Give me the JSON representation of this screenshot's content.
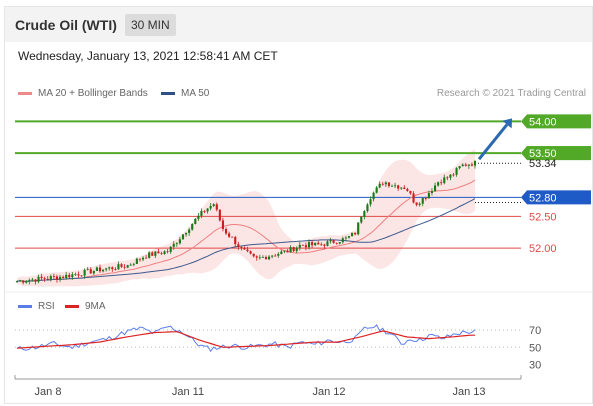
{
  "header": {
    "title": "Crude Oil (WTI)",
    "timeframe": "30 MIN"
  },
  "datetime": "Wednesday, January 13, 2021 12:58:41 AM CET",
  "legend": {
    "ma_bands": "MA 20 + Bollinger Bands",
    "ma50": "MA 50",
    "credit": "Research © 2021 Trading Central",
    "rsi": "RSI",
    "rsi_ma": "9MA"
  },
  "colors": {
    "resistance": "#52a827",
    "pivot": "#1f5bc6",
    "support": "#e04848",
    "ma20": "#f07f7f",
    "band_fill": "#fbdcdc",
    "ma50": "#3c5a8c",
    "rsi": "#5b7de8",
    "rsi_ma": "#dd2222",
    "candle_up": "#1a7a1a",
    "candle_down": "#cc1e1e",
    "arrow": "#2a68b0"
  },
  "chart_data": [
    {
      "type": "candlestick",
      "title": "Crude Oil (WTI)",
      "timeframe": "30 MIN",
      "x_ticks": [
        "Jan 8",
        "Jan 11",
        "Jan 12",
        "Jan 13"
      ],
      "ylim": [
        51.48,
        54.18
      ],
      "levels": [
        {
          "value": 54.0,
          "label": "54.00",
          "kind": "resistance"
        },
        {
          "value": 53.5,
          "label": "53.50",
          "kind": "resistance"
        },
        {
          "value": 53.34,
          "label": "53.34",
          "kind": "last"
        },
        {
          "value": 52.8,
          "label": "52.80",
          "kind": "pivot"
        },
        {
          "value": 52.5,
          "label": "52.50",
          "kind": "support"
        },
        {
          "value": 52.0,
          "label": "52.00",
          "kind": "support"
        }
      ],
      "price_path": [
        [
          0,
          51.48
        ],
        [
          10,
          51.55
        ],
        [
          18,
          51.66
        ],
        [
          24,
          51.72
        ],
        [
          28,
          51.88
        ],
        [
          33,
          51.95
        ],
        [
          36,
          52.2
        ],
        [
          39,
          52.45
        ],
        [
          41,
          52.6
        ],
        [
          43,
          52.7
        ],
        [
          45,
          52.3
        ],
        [
          47,
          52.15
        ],
        [
          49,
          51.98
        ],
        [
          52,
          51.82
        ],
        [
          55,
          51.88
        ],
        [
          59,
          51.95
        ],
        [
          62,
          52.05
        ],
        [
          66,
          52.05
        ],
        [
          69,
          52.1
        ],
        [
          72,
          52.15
        ],
        [
          74,
          52.25
        ],
        [
          75,
          52.5
        ],
        [
          77,
          52.8
        ],
        [
          80,
          53.05
        ],
        [
          82,
          53.0
        ],
        [
          85,
          52.95
        ],
        [
          87,
          52.7
        ],
        [
          89,
          52.8
        ],
        [
          92,
          53.05
        ],
        [
          95,
          53.15
        ],
        [
          97,
          53.3
        ],
        [
          99,
          53.34
        ]
      ]
    },
    {
      "type": "line",
      "title": "RSI",
      "ylim": [
        25,
        78
      ],
      "y_ticks": [
        70,
        50,
        30
      ],
      "series": [
        {
          "name": "RSI",
          "points": [
            [
              0,
              48
            ],
            [
              4,
              50
            ],
            [
              8,
              54
            ],
            [
              12,
              50
            ],
            [
              16,
              56
            ],
            [
              20,
              60
            ],
            [
              24,
              68
            ],
            [
              27,
              72
            ],
            [
              30,
              66
            ],
            [
              33,
              74
            ],
            [
              36,
              68
            ],
            [
              38,
              60
            ],
            [
              40,
              52
            ],
            [
              42,
              48
            ],
            [
              44,
              50
            ],
            [
              47,
              52
            ],
            [
              50,
              50
            ],
            [
              53,
              52
            ],
            [
              56,
              54
            ],
            [
              59,
              50
            ],
            [
              62,
              56
            ],
            [
              65,
              53
            ],
            [
              68,
              58
            ],
            [
              71,
              56
            ],
            [
              74,
              60
            ],
            [
              76,
              72
            ],
            [
              78,
              74
            ],
            [
              80,
              70
            ],
            [
              82,
              64
            ],
            [
              84,
              54
            ],
            [
              86,
              60
            ],
            [
              88,
              58
            ],
            [
              90,
              64
            ],
            [
              93,
              60
            ],
            [
              96,
              66
            ],
            [
              99,
              68
            ]
          ]
        },
        {
          "name": "9MA",
          "points": [
            [
              0,
              49
            ],
            [
              6,
              51
            ],
            [
              12,
              53
            ],
            [
              18,
              56
            ],
            [
              24,
              62
            ],
            [
              30,
              67
            ],
            [
              35,
              68
            ],
            [
              40,
              58
            ],
            [
              45,
              50
            ],
            [
              50,
              51
            ],
            [
              55,
              52
            ],
            [
              60,
              54
            ],
            [
              65,
              56
            ],
            [
              70,
              56
            ],
            [
              75,
              62
            ],
            [
              80,
              69
            ],
            [
              85,
              62
            ],
            [
              90,
              60
            ],
            [
              95,
              62
            ],
            [
              99,
              64
            ]
          ]
        }
      ]
    }
  ]
}
